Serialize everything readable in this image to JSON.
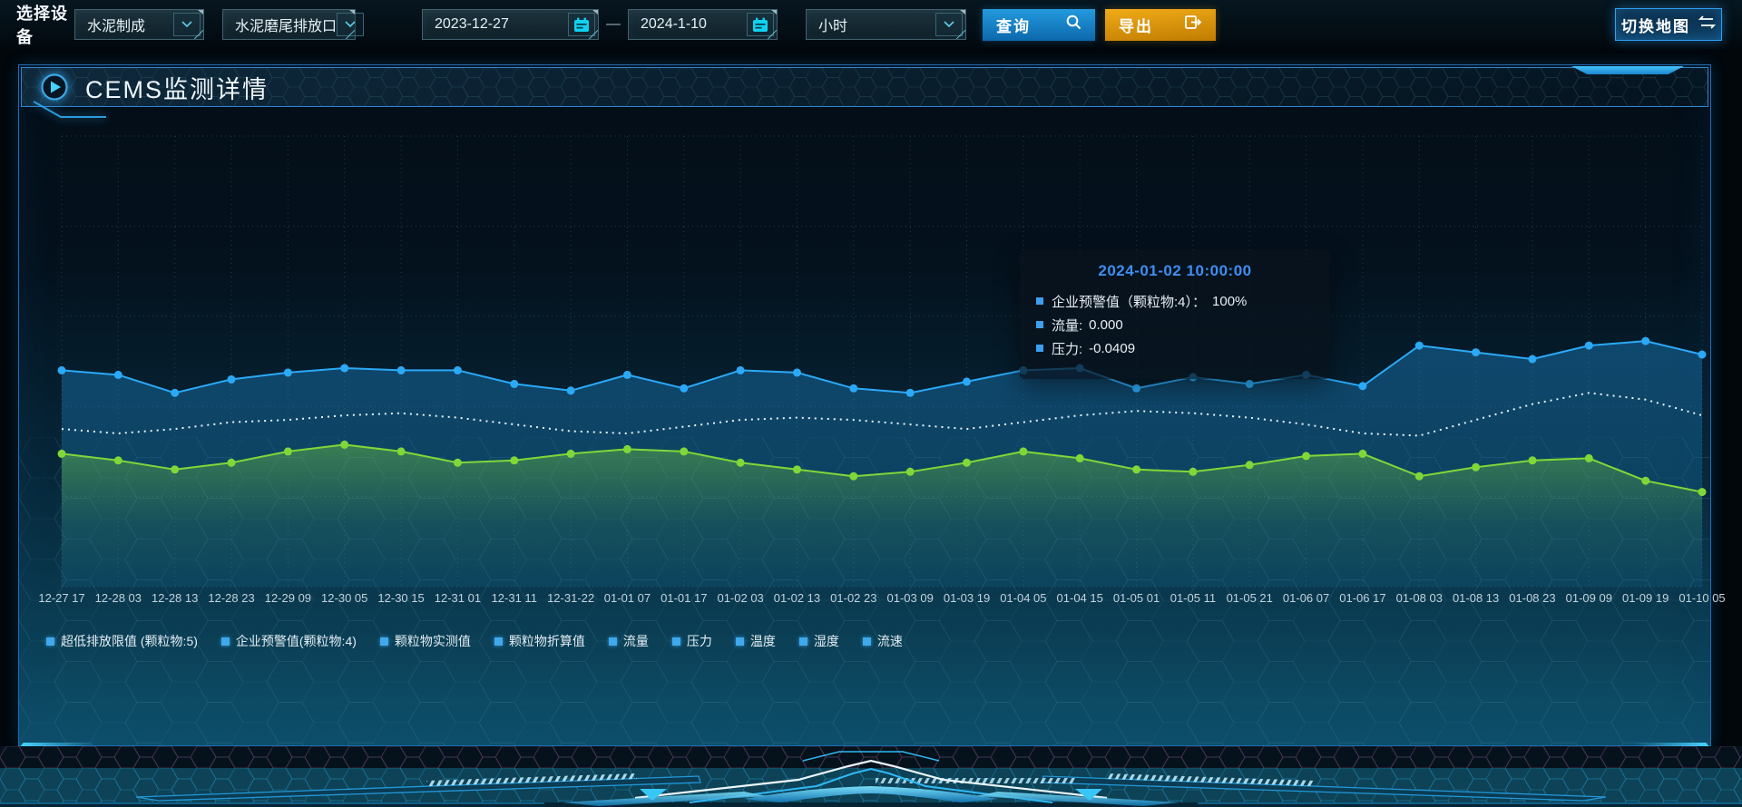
{
  "toolbar": {
    "device_label": "选择设备",
    "device_select": {
      "value": "水泥制成"
    },
    "outlet_select": {
      "value": "水泥磨尾排放口"
    },
    "date_start": "2023-12-27",
    "date_separator": "—",
    "date_end": "2024-1-10",
    "interval_select": {
      "value": "小时"
    },
    "query_button": "查询",
    "export_button": "导出",
    "switch_map_button": "切换地图"
  },
  "panel": {
    "title": "CEMS监测详情"
  },
  "tooltip": {
    "title": "2024-01-02 10:00:00",
    "items": [
      {
        "label": "企业预警值（颗粒物:4）：",
        "value": "100%"
      },
      {
        "label": "流量:",
        "value": "0.000"
      },
      {
        "label": "压力:",
        "value": "-0.0409"
      }
    ]
  },
  "chart_data": {
    "type": "line",
    "title": "CEMS监测详情",
    "x": [
      "12-27 17",
      "12-28 03",
      "12-28 13",
      "12-28 23",
      "12-29 09",
      "12-30 05",
      "12-30 15",
      "12-31 01",
      "12-31 11",
      "12-31-22",
      "01-01 07",
      "01-01 17",
      "01-02 03",
      "01-02 13",
      "01-02 23",
      "01-03 09",
      "01-03 19",
      "01-04 05",
      "01-04 15",
      "01-05 01",
      "01-05 11",
      "01-05 21",
      "01-06 07",
      "01-06 17",
      "01-08 03",
      "01-08 13",
      "01-08 23",
      "01-09 09",
      "01-09 19",
      "01-10 05"
    ],
    "y_axis": {
      "tick_labels_visible": false,
      "unit": "relative height % (y-axis unlabeled in UI)"
    },
    "grid": {
      "style": "dotted",
      "h_lines": 6,
      "v_lines": 30
    },
    "legend": [
      "超低排放限值 (颗粒物:5)",
      "企业预警值(颗粒物:4)",
      "颗粒物实测值",
      "颗粒物折算值",
      "流量",
      "压力",
      "温度",
      "湿度",
      "流速"
    ],
    "legend_position": "bottom-left",
    "series": [
      {
        "name": "企业预警值（颗粒物:4）",
        "color": "#2ba9f7",
        "line_style": "solid",
        "markers": true,
        "area": "blue",
        "values": [
          48,
          47,
          43,
          46,
          47.5,
          48.5,
          48,
          48,
          45,
          43.5,
          47,
          44,
          48,
          47.5,
          44,
          43,
          45.5,
          48,
          48.5,
          44,
          46.5,
          45,
          47,
          44.5,
          53.5,
          52,
          50.5,
          53.5,
          54.5,
          51.5
        ]
      },
      {
        "name": "流量",
        "color": "#e9f3f8",
        "line_style": "dotted",
        "markers": false,
        "area": null,
        "values": [
          35,
          34,
          35,
          36.5,
          37,
          38,
          38.5,
          37.5,
          36,
          34.5,
          34,
          35.5,
          37,
          37.5,
          37,
          36,
          35,
          36.5,
          38,
          39,
          38.5,
          37.5,
          36,
          34,
          33.5,
          37,
          40.5,
          43,
          41.5,
          38
        ]
      },
      {
        "name": "压力",
        "color": "#7fd838",
        "line_style": "solid",
        "markers": true,
        "area": "green",
        "values": [
          29.5,
          28,
          26,
          27.5,
          30,
          31.5,
          30,
          27.5,
          28,
          29.5,
          30.5,
          30,
          27.5,
          26,
          24.5,
          25.5,
          27.5,
          30,
          28.5,
          26,
          25.5,
          27,
          29,
          29.5,
          24.5,
          26.5,
          28,
          28.5,
          23.5,
          21
        ]
      }
    ]
  },
  "colors": {
    "accent_blue": "#2ba9f7",
    "accent_green": "#7fd838",
    "accent_cyan": "#0fd2f0",
    "accent_orange": "#eda816",
    "panel_border": "#1e6db4",
    "tooltip_title": "#3d8ef2",
    "legend_marker": "#3fa9ec"
  }
}
